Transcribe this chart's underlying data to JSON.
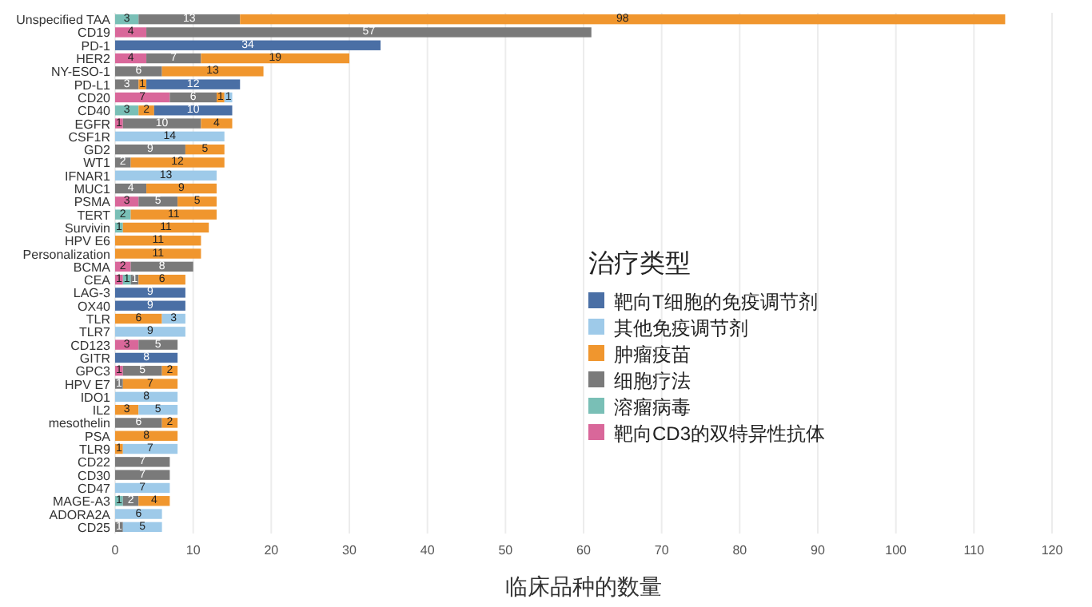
{
  "chart_data": {
    "type": "bar",
    "orientation": "horizontal",
    "stacked": true,
    "data_labels": true,
    "grid": "x",
    "legend": "right",
    "xlabel": "临床品种的数量",
    "legend_title": "治疗类型",
    "xlim": [
      0,
      120
    ],
    "xticks": [
      0,
      10,
      20,
      30,
      40,
      50,
      60,
      70,
      80,
      90,
      100,
      110,
      120
    ],
    "categories": [
      "Unspecified TAA",
      "CD19",
      "PD-1",
      "HER2",
      "NY-ESO-1",
      "PD-L1",
      "CD20",
      "CD40",
      "EGFR",
      "CSF1R",
      "GD2",
      "WT1",
      "IFNAR1",
      "MUC1",
      "PSMA",
      "TERT",
      "Survivin",
      "HPV E6",
      "Personalization",
      "BCMA",
      "CEA",
      "LAG-3",
      "OX40",
      "TLR",
      "TLR7",
      "CD123",
      "GITR",
      "GPC3",
      "HPV E7",
      "IDO1",
      "IL2",
      "mesothelin",
      "PSA",
      "TLR9",
      "CD22",
      "CD30",
      "CD47",
      "MAGE-A3",
      "ADORA2A",
      "CD25"
    ],
    "series": [
      {
        "name": "靶向CD3的双特异性抗体",
        "color": "#d9679a",
        "values": [
          null,
          4,
          null,
          4,
          null,
          null,
          7,
          null,
          1,
          null,
          null,
          null,
          null,
          null,
          3,
          null,
          null,
          null,
          null,
          2,
          1,
          null,
          null,
          null,
          null,
          3,
          null,
          1,
          null,
          null,
          null,
          null,
          null,
          null,
          null,
          null,
          null,
          null,
          null,
          null
        ]
      },
      {
        "name": "溶瘤病毒",
        "color": "#79bfb6",
        "values": [
          3,
          null,
          null,
          null,
          null,
          null,
          null,
          3,
          null,
          null,
          null,
          null,
          null,
          null,
          null,
          2,
          1,
          null,
          null,
          null,
          1,
          null,
          null,
          null,
          null,
          null,
          null,
          null,
          null,
          null,
          null,
          null,
          null,
          null,
          null,
          null,
          null,
          1,
          null,
          null
        ]
      },
      {
        "name": "细胞疗法",
        "color": "#7a7a7a",
        "values": [
          13,
          57,
          null,
          7,
          6,
          3,
          6,
          null,
          10,
          null,
          9,
          2,
          null,
          4,
          5,
          null,
          null,
          null,
          null,
          8,
          1,
          null,
          null,
          null,
          null,
          5,
          null,
          5,
          1,
          null,
          null,
          6,
          null,
          null,
          7,
          7,
          null,
          2,
          null,
          1
        ]
      },
      {
        "name": "肿瘤疫苗",
        "color": "#f0962e",
        "values": [
          98,
          null,
          null,
          19,
          13,
          1,
          1,
          2,
          4,
          null,
          5,
          12,
          null,
          9,
          5,
          11,
          11,
          11,
          11,
          null,
          6,
          null,
          null,
          6,
          null,
          null,
          null,
          2,
          7,
          null,
          3,
          2,
          8,
          1,
          null,
          null,
          null,
          4,
          null,
          null
        ]
      },
      {
        "name": "其他免疫调节剂",
        "color": "#9ecae9",
        "values": [
          null,
          null,
          null,
          null,
          null,
          null,
          1,
          null,
          null,
          14,
          null,
          null,
          13,
          null,
          null,
          null,
          null,
          null,
          null,
          null,
          null,
          null,
          null,
          3,
          9,
          null,
          null,
          null,
          null,
          8,
          5,
          null,
          null,
          7,
          null,
          null,
          7,
          null,
          6,
          5
        ]
      },
      {
        "name": "靶向T细胞的免疫调节剂",
        "color": "#4a6fa5",
        "values": [
          null,
          null,
          34,
          null,
          null,
          12,
          null,
          10,
          null,
          null,
          null,
          null,
          null,
          null,
          null,
          null,
          null,
          null,
          null,
          null,
          null,
          9,
          9,
          null,
          null,
          null,
          8,
          null,
          null,
          null,
          null,
          null,
          null,
          null,
          null,
          null,
          null,
          null,
          null,
          null
        ]
      }
    ]
  }
}
